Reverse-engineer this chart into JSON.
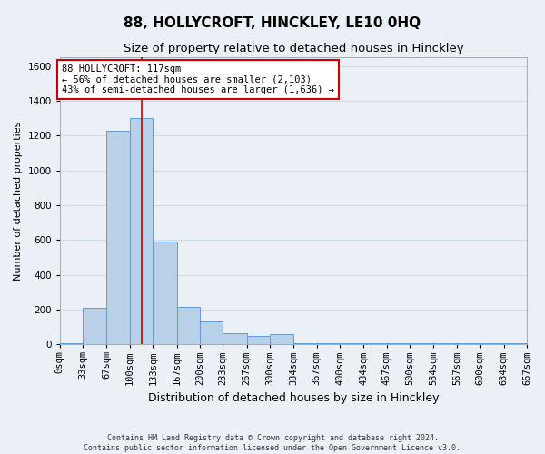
{
  "title": "88, HOLLYCROFT, HINCKLEY, LE10 0HQ",
  "subtitle": "Size of property relative to detached houses in Hinckley",
  "xlabel": "Distribution of detached houses by size in Hinckley",
  "ylabel": "Number of detached properties",
  "footer_line1": "Contains HM Land Registry data © Crown copyright and database right 2024.",
  "footer_line2": "Contains public sector information licensed under the Open Government Licence v3.0.",
  "bin_edges": [
    0,
    33,
    67,
    100,
    133,
    167,
    200,
    233,
    267,
    300,
    334,
    367,
    400,
    434,
    467,
    500,
    534,
    567,
    600,
    634,
    667
  ],
  "bar_heights": [
    5,
    210,
    1230,
    1300,
    590,
    215,
    130,
    65,
    50,
    60,
    5,
    5,
    5,
    5,
    5,
    5,
    5,
    5,
    5,
    5
  ],
  "bar_color": "#b8d0e8",
  "bar_edge_color": "#6699cc",
  "grid_color": "#d0dce8",
  "background_color": "#eaf0f6",
  "property_sqm": 117,
  "vline_color": "#cc0000",
  "annotation_text": "88 HOLLYCROFT: 117sqm\n← 56% of detached houses are smaller (2,103)\n43% of semi-detached houses are larger (1,636) →",
  "annotation_box_color": "#ffffff",
  "annotation_border_color": "#cc0000",
  "ylim": [
    0,
    1650
  ],
  "yticks": [
    0,
    200,
    400,
    600,
    800,
    1000,
    1200,
    1400,
    1600
  ],
  "title_fontsize": 11,
  "subtitle_fontsize": 9.5,
  "xlabel_fontsize": 9,
  "ylabel_fontsize": 8,
  "tick_fontsize": 7.5,
  "annotation_fontsize": 7.5
}
